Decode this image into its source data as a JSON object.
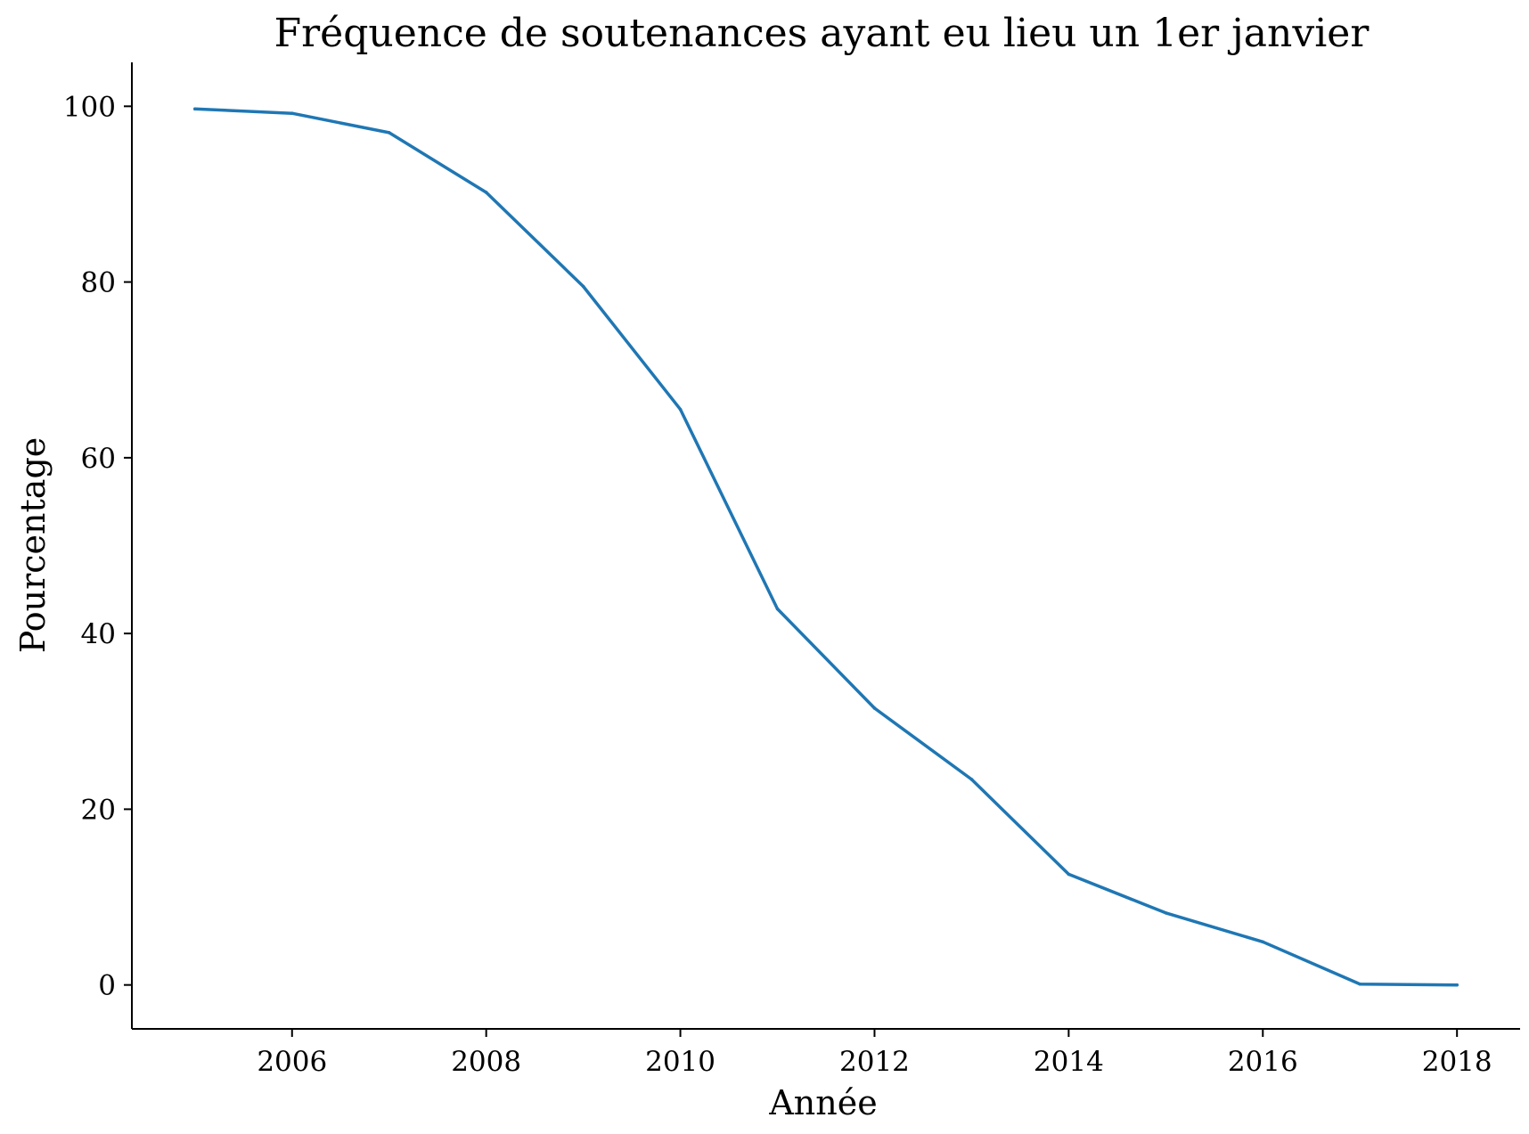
{
  "chart_data": {
    "type": "line",
    "title": "Fréquence de soutenances ayant eu lieu un 1er janvier",
    "xlabel": "Année",
    "ylabel": "Pourcentage",
    "xlim": [
      2004.35,
      2018.65
    ],
    "ylim": [
      -5,
      105
    ],
    "xticks": [
      2006,
      2008,
      2010,
      2012,
      2014,
      2016,
      2018
    ],
    "yticks": [
      0,
      20,
      40,
      60,
      80,
      100
    ],
    "grid": false,
    "legend": "none",
    "series": [
      {
        "color": "#1f77b4",
        "x": [
          2005,
          2006,
          2007,
          2008,
          2009,
          2010,
          2011,
          2012,
          2013,
          2014,
          2015,
          2016,
          2017,
          2018
        ],
        "y": [
          99.7,
          99.2,
          97.0,
          90.2,
          79.5,
          65.5,
          42.8,
          31.5,
          23.4,
          12.6,
          8.2,
          4.9,
          0.1,
          0.0
        ]
      }
    ]
  }
}
